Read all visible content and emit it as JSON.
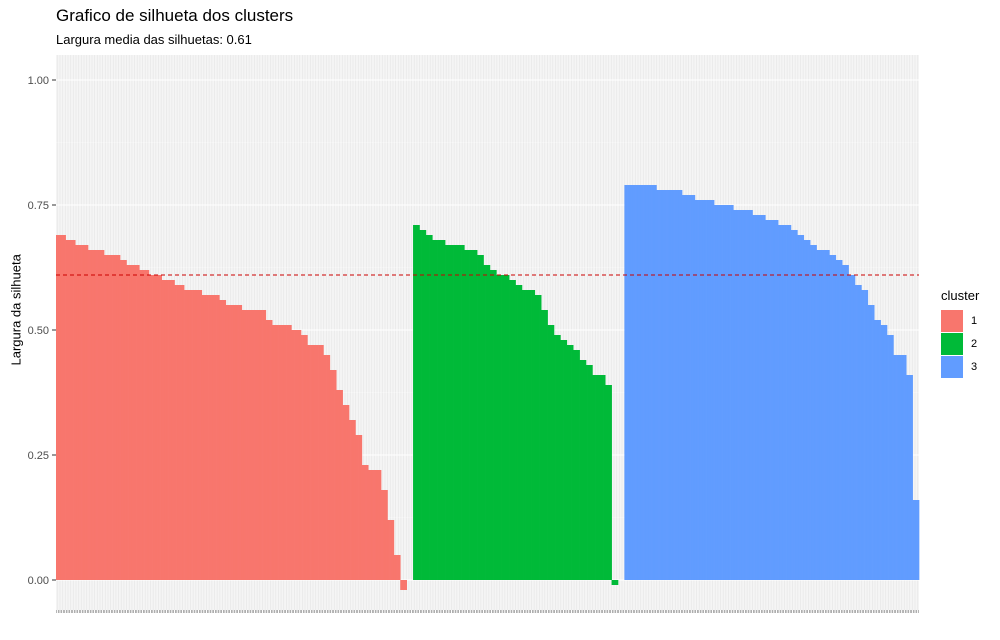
{
  "chart_data": {
    "type": "bar",
    "title": "Grafico de silhueta dos clusters",
    "subtitle": "Largura media das silhuetas: 0.61",
    "xlabel": "",
    "ylabel": "Largura da silhueta",
    "ylim": [
      -0.06,
      1.05
    ],
    "yticks": [
      "0.00",
      "0.25",
      "0.50",
      "0.75",
      "1.00"
    ],
    "reference_line": {
      "y": 0.61,
      "color": "#CC0000",
      "style": "dashed"
    },
    "legend": {
      "title": "cluster",
      "position": "right"
    },
    "grid": true,
    "series": [
      {
        "name": "1",
        "color": "#F8766D",
        "values": [
          0.69,
          0.69,
          0.69,
          0.69,
          0.69,
          0.69,
          0.68,
          0.68,
          0.68,
          0.68,
          0.68,
          0.68,
          0.67,
          0.67,
          0.67,
          0.67,
          0.67,
          0.67,
          0.67,
          0.67,
          0.66,
          0.66,
          0.66,
          0.66,
          0.66,
          0.66,
          0.66,
          0.66,
          0.66,
          0.66,
          0.65,
          0.65,
          0.65,
          0.65,
          0.65,
          0.65,
          0.65,
          0.65,
          0.65,
          0.65,
          0.64,
          0.64,
          0.64,
          0.64,
          0.63,
          0.63,
          0.63,
          0.63,
          0.63,
          0.63,
          0.63,
          0.63,
          0.62,
          0.62,
          0.62,
          0.62,
          0.62,
          0.62,
          0.61,
          0.61,
          0.61,
          0.61,
          0.61,
          0.61,
          0.61,
          0.61,
          0.6,
          0.6,
          0.6,
          0.6,
          0.6,
          0.6,
          0.6,
          0.6,
          0.59,
          0.59,
          0.59,
          0.59,
          0.59,
          0.59,
          0.58,
          0.58,
          0.58,
          0.58,
          0.58,
          0.58,
          0.58,
          0.58,
          0.58,
          0.58,
          0.58,
          0.57,
          0.57,
          0.57,
          0.57,
          0.57,
          0.57,
          0.57,
          0.57,
          0.57,
          0.57,
          0.57,
          0.56,
          0.56,
          0.56,
          0.56,
          0.55,
          0.55,
          0.55,
          0.55,
          0.55,
          0.55,
          0.55,
          0.55,
          0.55,
          0.55,
          0.54,
          0.54,
          0.54,
          0.54,
          0.54,
          0.54,
          0.54,
          0.54,
          0.54,
          0.54,
          0.54,
          0.54,
          0.54,
          0.54,
          0.54,
          0.52,
          0.52,
          0.52,
          0.52,
          0.51,
          0.51,
          0.51,
          0.51,
          0.51,
          0.51,
          0.51,
          0.51,
          0.51,
          0.51,
          0.51,
          0.51,
          0.5,
          0.5,
          0.5,
          0.5,
          0.5,
          0.5,
          0.49,
          0.49,
          0.49,
          0.49,
          0.47,
          0.47,
          0.47,
          0.47,
          0.47,
          0.47,
          0.47,
          0.47,
          0.47,
          0.47,
          0.45,
          0.45,
          0.45,
          0.45,
          0.42,
          0.42,
          0.42,
          0.42,
          0.38,
          0.38,
          0.38,
          0.38,
          0.35,
          0.35,
          0.35,
          0.35,
          0.32,
          0.32,
          0.32,
          0.32,
          0.29,
          0.29,
          0.29,
          0.29,
          0.23,
          0.23,
          0.23,
          0.23,
          0.22,
          0.22,
          0.22,
          0.22,
          0.22,
          0.22,
          0.22,
          0.22,
          0.18,
          0.18,
          0.18,
          0.18,
          0.12,
          0.12,
          0.12,
          0.12,
          0.05,
          0.05,
          0.05,
          0.05,
          -0.02,
          -0.02,
          -0.02,
          -0.02
        ]
      },
      {
        "name": "2",
        "color": "#00BA38",
        "values": [
          0.71,
          0.71,
          0.71,
          0.71,
          0.7,
          0.7,
          0.7,
          0.7,
          0.69,
          0.69,
          0.69,
          0.69,
          0.68,
          0.68,
          0.68,
          0.68,
          0.68,
          0.68,
          0.68,
          0.68,
          0.67,
          0.67,
          0.67,
          0.67,
          0.67,
          0.67,
          0.67,
          0.67,
          0.67,
          0.67,
          0.67,
          0.67,
          0.66,
          0.66,
          0.66,
          0.66,
          0.66,
          0.66,
          0.66,
          0.66,
          0.65,
          0.65,
          0.65,
          0.65,
          0.63,
          0.63,
          0.63,
          0.63,
          0.62,
          0.62,
          0.62,
          0.62,
          0.61,
          0.61,
          0.61,
          0.61,
          0.61,
          0.61,
          0.61,
          0.61,
          0.6,
          0.6,
          0.6,
          0.6,
          0.59,
          0.59,
          0.59,
          0.59,
          0.58,
          0.58,
          0.58,
          0.58,
          0.58,
          0.58,
          0.58,
          0.58,
          0.57,
          0.57,
          0.57,
          0.57,
          0.54,
          0.54,
          0.54,
          0.54,
          0.51,
          0.51,
          0.51,
          0.51,
          0.49,
          0.49,
          0.49,
          0.49,
          0.48,
          0.48,
          0.48,
          0.48,
          0.47,
          0.47,
          0.47,
          0.47,
          0.46,
          0.46,
          0.46,
          0.46,
          0.44,
          0.44,
          0.44,
          0.44,
          0.43,
          0.43,
          0.43,
          0.43,
          0.41,
          0.41,
          0.41,
          0.41,
          0.41,
          0.41,
          0.41,
          0.41,
          0.39,
          0.39,
          0.39,
          0.39,
          -0.01,
          -0.01,
          -0.01,
          -0.01
        ]
      },
      {
        "name": "3",
        "color": "#619CFF",
        "values": [
          0.79,
          0.79,
          0.79,
          0.79,
          0.79,
          0.79,
          0.79,
          0.79,
          0.79,
          0.79,
          0.79,
          0.79,
          0.79,
          0.79,
          0.79,
          0.79,
          0.79,
          0.79,
          0.79,
          0.79,
          0.78,
          0.78,
          0.78,
          0.78,
          0.78,
          0.78,
          0.78,
          0.78,
          0.78,
          0.78,
          0.78,
          0.78,
          0.78,
          0.78,
          0.78,
          0.78,
          0.77,
          0.77,
          0.77,
          0.77,
          0.77,
          0.77,
          0.77,
          0.77,
          0.76,
          0.76,
          0.76,
          0.76,
          0.76,
          0.76,
          0.76,
          0.76,
          0.76,
          0.76,
          0.76,
          0.76,
          0.75,
          0.75,
          0.75,
          0.75,
          0.75,
          0.75,
          0.75,
          0.75,
          0.75,
          0.75,
          0.75,
          0.75,
          0.74,
          0.74,
          0.74,
          0.74,
          0.74,
          0.74,
          0.74,
          0.74,
          0.74,
          0.74,
          0.74,
          0.74,
          0.73,
          0.73,
          0.73,
          0.73,
          0.73,
          0.73,
          0.73,
          0.73,
          0.72,
          0.72,
          0.72,
          0.72,
          0.72,
          0.72,
          0.72,
          0.72,
          0.71,
          0.71,
          0.71,
          0.71,
          0.71,
          0.71,
          0.71,
          0.71,
          0.7,
          0.7,
          0.7,
          0.7,
          0.69,
          0.69,
          0.69,
          0.69,
          0.68,
          0.68,
          0.68,
          0.68,
          0.67,
          0.67,
          0.67,
          0.67,
          0.66,
          0.66,
          0.66,
          0.66,
          0.66,
          0.66,
          0.66,
          0.66,
          0.65,
          0.65,
          0.65,
          0.65,
          0.64,
          0.64,
          0.64,
          0.64,
          0.63,
          0.63,
          0.63,
          0.63,
          0.61,
          0.61,
          0.61,
          0.61,
          0.59,
          0.59,
          0.59,
          0.59,
          0.58,
          0.58,
          0.58,
          0.58,
          0.55,
          0.55,
          0.55,
          0.55,
          0.52,
          0.52,
          0.52,
          0.52,
          0.51,
          0.51,
          0.51,
          0.51,
          0.49,
          0.49,
          0.49,
          0.49,
          0.45,
          0.45,
          0.45,
          0.45,
          0.45,
          0.45,
          0.45,
          0.45,
          0.41,
          0.41,
          0.41,
          0.41,
          0.16,
          0.16,
          0.16,
          0.16
        ]
      }
    ]
  }
}
